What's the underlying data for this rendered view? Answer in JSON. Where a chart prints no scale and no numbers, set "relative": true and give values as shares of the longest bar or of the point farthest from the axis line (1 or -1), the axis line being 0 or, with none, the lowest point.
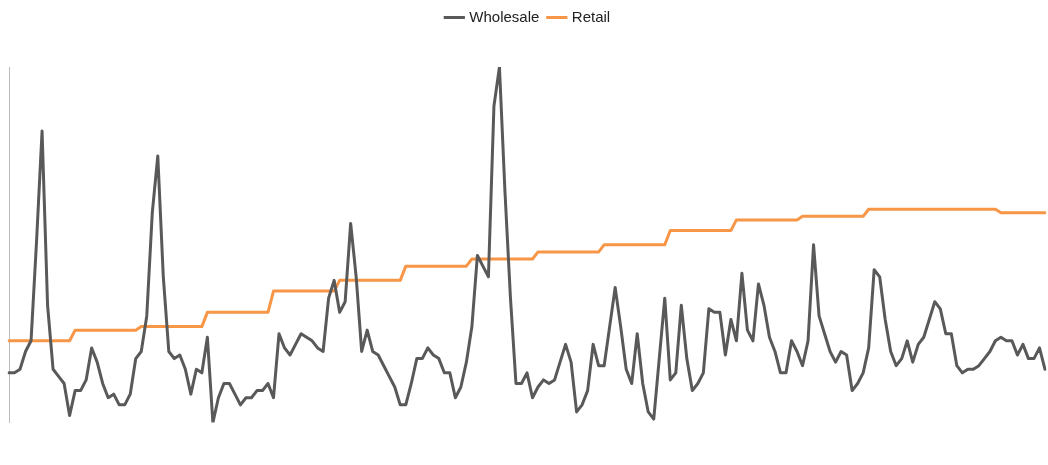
{
  "chart_data": {
    "type": "line",
    "relative": true,
    "legend": "top",
    "marker": "none",
    "grid": false,
    "categories": [
      null,
      null,
      null,
      null,
      null,
      null,
      null,
      null,
      null,
      null,
      null,
      null,
      null,
      null,
      null,
      null,
      null,
      null,
      null,
      null,
      null,
      null,
      null,
      null,
      null,
      null,
      null,
      null,
      null,
      null,
      null,
      null,
      null,
      null,
      null,
      null,
      null,
      null,
      null,
      null,
      null,
      null,
      null,
      null,
      null,
      null,
      null,
      null,
      null,
      null,
      null,
      null,
      null,
      null,
      null,
      null,
      null,
      null,
      null,
      null,
      null,
      null,
      null,
      null,
      null,
      null,
      null,
      null,
      null,
      null,
      null,
      null,
      null,
      null,
      null,
      null,
      null,
      null,
      null,
      null,
      null,
      null,
      null,
      null,
      null,
      null,
      null,
      null,
      null,
      null,
      null,
      null,
      null,
      null,
      null,
      null,
      null,
      null,
      null,
      null,
      null,
      null,
      null,
      null,
      null,
      null,
      null,
      null,
      null,
      null,
      null,
      null,
      null,
      null,
      null,
      null,
      null,
      null,
      null,
      null,
      null,
      null,
      null,
      null,
      null,
      null,
      null,
      null,
      null,
      null,
      null,
      null,
      null,
      null,
      null,
      null,
      null,
      null,
      null,
      null,
      null,
      null,
      null,
      null,
      null,
      null,
      null,
      null,
      null,
      null,
      null,
      null,
      null,
      null,
      null,
      null,
      null,
      null,
      null,
      null,
      null,
      null,
      null,
      null,
      null,
      null,
      null,
      null,
      null,
      null,
      null,
      null,
      null,
      null,
      null,
      null,
      null,
      null,
      null,
      null,
      null,
      null,
      null,
      null,
      null,
      null,
      null,
      null,
      null
    ],
    "series": [
      {
        "name": "Wholesale",
        "color": "#595959",
        "values": [
          0.14,
          0.14,
          0.15,
          0.2,
          0.23,
          0.51,
          0.82,
          0.33,
          0.15,
          0.13,
          0.11,
          0.02,
          0.09,
          0.09,
          0.12,
          0.21,
          0.17,
          0.11,
          0.07,
          0.08,
          0.05,
          0.05,
          0.08,
          0.18,
          0.2,
          0.3,
          0.59,
          0.75,
          0.41,
          0.2,
          0.18,
          0.19,
          0.15,
          0.08,
          0.15,
          0.14,
          0.24,
          0,
          0.07,
          0.11,
          0.11,
          0.08,
          0.05,
          0.07,
          0.07,
          0.09,
          0.09,
          0.11,
          0.07,
          0.25,
          0.21,
          0.19,
          0.22,
          0.25,
          0.24,
          0.23,
          0.21,
          0.2,
          0.35,
          0.4,
          0.31,
          0.34,
          0.56,
          0.41,
          0.2,
          0.26,
          0.2,
          0.19,
          0.16,
          0.13,
          0.1,
          0.05,
          0.05,
          0.11,
          0.18,
          0.18,
          0.21,
          0.19,
          0.18,
          0.14,
          0.14,
          0.07,
          0.1,
          0.17,
          0.27,
          0.47,
          0.44,
          0.41,
          0.89,
          1,
          0.65,
          0.35,
          0.11,
          0.11,
          0.14,
          0.07,
          0.1,
          0.12,
          0.11,
          0.12,
          0.17,
          0.22,
          0.17,
          0.03,
          0.05,
          0.09,
          0.22,
          0.16,
          0.16,
          0.27,
          0.38,
          0.27,
          0.15,
          0.11,
          0.25,
          0.11,
          0.03,
          0.01,
          0.18,
          0.35,
          0.12,
          0.14,
          0.33,
          0.18,
          0.09,
          0.11,
          0.14,
          0.32,
          0.31,
          0.31,
          0.19,
          0.29,
          0.23,
          0.42,
          0.26,
          0.23,
          0.39,
          0.33,
          0.24,
          0.2,
          0.14,
          0.14,
          0.23,
          0.2,
          0.16,
          0.23,
          0.5,
          0.3,
          0.25,
          0.2,
          0.17,
          0.2,
          0.19,
          0.09,
          0.11,
          0.14,
          0.21,
          0.43,
          0.41,
          0.29,
          0.2,
          0.16,
          0.18,
          0.23,
          0.17,
          0.22,
          0.24,
          0.29,
          0.34,
          0.32,
          0.25,
          0.25,
          0.16,
          0.14,
          0.15,
          0.15,
          0.16,
          0.18,
          0.2,
          0.23,
          0.24,
          0.23,
          0.23,
          0.19,
          0.22,
          0.18,
          0.18,
          0.21,
          0.15
        ]
      },
      {
        "name": "Retail",
        "color": "#f79646",
        "values": [
          0.23,
          0.23,
          0.23,
          0.23,
          0.23,
          0.23,
          0.23,
          0.23,
          0.23,
          0.23,
          0.23,
          0.23,
          0.26,
          0.26,
          0.26,
          0.26,
          0.26,
          0.26,
          0.26,
          0.26,
          0.26,
          0.26,
          0.26,
          0.26,
          0.27,
          0.27,
          0.27,
          0.27,
          0.27,
          0.27,
          0.27,
          0.27,
          0.27,
          0.27,
          0.27,
          0.27,
          0.31,
          0.31,
          0.31,
          0.31,
          0.31,
          0.31,
          0.31,
          0.31,
          0.31,
          0.31,
          0.31,
          0.31,
          0.37,
          0.37,
          0.37,
          0.37,
          0.37,
          0.37,
          0.37,
          0.37,
          0.37,
          0.37,
          0.37,
          0.37,
          0.4,
          0.4,
          0.4,
          0.4,
          0.4,
          0.4,
          0.4,
          0.4,
          0.4,
          0.4,
          0.4,
          0.4,
          0.44,
          0.44,
          0.44,
          0.44,
          0.44,
          0.44,
          0.44,
          0.44,
          0.44,
          0.44,
          0.44,
          0.44,
          0.46,
          0.46,
          0.46,
          0.46,
          0.46,
          0.46,
          0.46,
          0.46,
          0.46,
          0.46,
          0.46,
          0.46,
          0.48,
          0.48,
          0.48,
          0.48,
          0.48,
          0.48,
          0.48,
          0.48,
          0.48,
          0.48,
          0.48,
          0.48,
          0.5,
          0.5,
          0.5,
          0.5,
          0.5,
          0.5,
          0.5,
          0.5,
          0.5,
          0.5,
          0.5,
          0.5,
          0.54,
          0.54,
          0.54,
          0.54,
          0.54,
          0.54,
          0.54,
          0.54,
          0.54,
          0.54,
          0.54,
          0.54,
          0.57,
          0.57,
          0.57,
          0.57,
          0.57,
          0.57,
          0.57,
          0.57,
          0.57,
          0.57,
          0.57,
          0.57,
          0.58,
          0.58,
          0.58,
          0.58,
          0.58,
          0.58,
          0.58,
          0.58,
          0.58,
          0.58,
          0.58,
          0.58,
          0.6,
          0.6,
          0.6,
          0.6,
          0.6,
          0.6,
          0.6,
          0.6,
          0.6,
          0.6,
          0.6,
          0.6,
          0.6,
          0.6,
          0.6,
          0.6,
          0.6,
          0.6,
          0.6,
          0.6,
          0.6,
          0.6,
          0.6,
          0.6,
          0.59,
          0.59,
          0.59,
          0.59,
          0.59,
          0.59,
          0.59,
          0.59,
          0.59
        ]
      }
    ]
  }
}
